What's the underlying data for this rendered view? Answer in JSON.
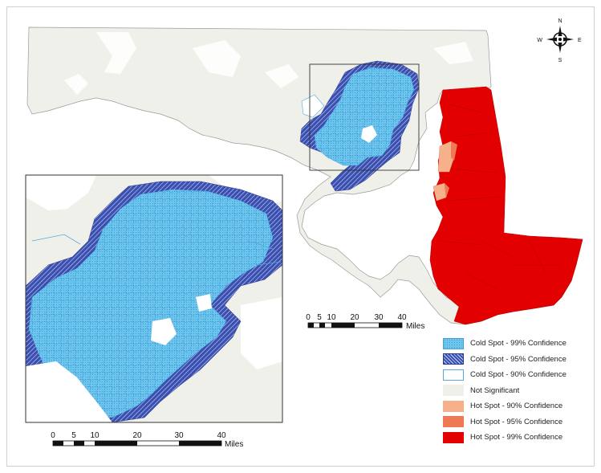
{
  "colors": {
    "cold99": "#6ec6ee",
    "cold95": "#4458b8",
    "cold90": "#ffffff",
    "not_significant": "#f0f0eb",
    "hot90": "#f6b08a",
    "hot95": "#ee7a55",
    "hot99": "#e30000"
  },
  "compass": {
    "n": "N",
    "s": "S",
    "e": "E",
    "w": "W"
  },
  "main_scale": {
    "ticks": [
      "0",
      "5",
      "10",
      "20",
      "30",
      "40"
    ],
    "unit": "Miles"
  },
  "inset_scale": {
    "ticks": [
      "0",
      "5",
      "10",
      "20",
      "30",
      "40"
    ],
    "unit": "Miles"
  },
  "legend": [
    {
      "label": "Cold Spot - 99% Confidence",
      "class": "cold99"
    },
    {
      "label": "Cold Spot - 95% Confidence",
      "class": "cold95"
    },
    {
      "label": "Cold Spot - 90% Confidence",
      "class": "cold90"
    },
    {
      "label": "Not Significant",
      "class": "not_significant"
    },
    {
      "label": "Hot Spot - 90% Confidence",
      "class": "hot90"
    },
    {
      "label": "Hot Spot - 95% Confidence",
      "class": "hot95"
    },
    {
      "label": "Hot Spot - 99% Confidence",
      "class": "hot99"
    }
  ]
}
